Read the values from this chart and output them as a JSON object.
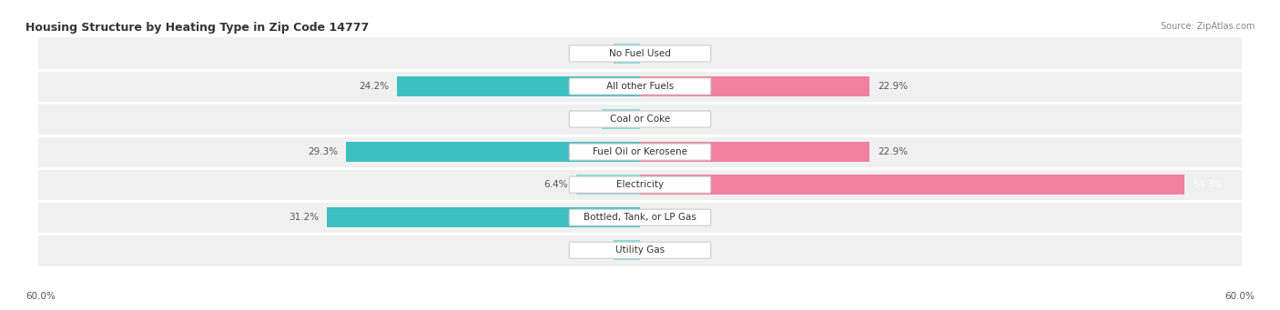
{
  "title": "Housing Structure by Heating Type in Zip Code 14777",
  "source": "Source: ZipAtlas.com",
  "categories": [
    "Utility Gas",
    "Bottled, Tank, or LP Gas",
    "Electricity",
    "Fuel Oil or Kerosene",
    "Coal or Coke",
    "All other Fuels",
    "No Fuel Used"
  ],
  "owner_values": [
    2.6,
    31.2,
    6.4,
    29.3,
    3.8,
    24.2,
    2.6
  ],
  "renter_values": [
    0.0,
    0.0,
    54.3,
    22.9,
    0.0,
    22.9,
    0.0
  ],
  "owner_color": "#3dbfc0",
  "renter_color": "#f080a0",
  "owner_color_light": "#90d8d8",
  "renter_color_light": "#f8bcd0",
  "axis_max": 60.0,
  "row_bg_color": "#f0f0f0",
  "label_color": "#555555",
  "title_color": "#333333",
  "figsize": [
    14.06,
    3.41
  ],
  "dpi": 100
}
